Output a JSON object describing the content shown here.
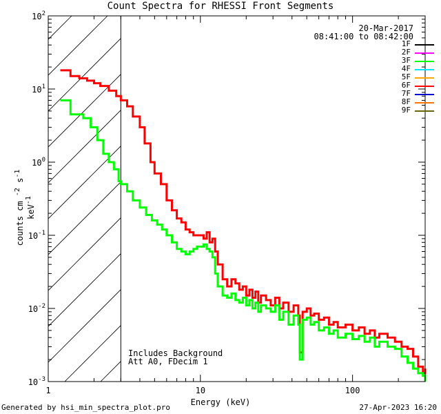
{
  "chart_data": {
    "type": "line",
    "title": "Count Spectra for RHESSI Front Segments",
    "xlabel": "Energy (keV)",
    "ylabel": "counts cm",
    "ylabel_units": [
      "-2",
      "s",
      "-1",
      "keV",
      "-1"
    ],
    "xscale": "log",
    "yscale": "log",
    "xlim": [
      1,
      300
    ],
    "ylim": [
      0.001,
      100
    ],
    "x_ticks": [
      {
        "value": 1,
        "label": "1"
      },
      {
        "value": 10,
        "label": "10"
      },
      {
        "value": 100,
        "label": "100"
      }
    ],
    "y_ticks": [
      {
        "value": 0.001,
        "base": "10",
        "exp": "-3"
      },
      {
        "value": 0.01,
        "base": "10",
        "exp": "-2"
      },
      {
        "value": 0.1,
        "base": "10",
        "exp": "-1"
      },
      {
        "value": 1,
        "base": "10",
        "exp": "0"
      },
      {
        "value": 10,
        "base": "10",
        "exp": "1"
      },
      {
        "value": 100,
        "base": "10",
        "exp": "2"
      }
    ],
    "hatched_region_max_energy": 3,
    "legend": [
      {
        "label": "1F",
        "color": "#000000"
      },
      {
        "label": "2F",
        "color": "#ff00ff"
      },
      {
        "label": "3F",
        "color": "#00ff00"
      },
      {
        "label": "4F",
        "color": "#00e5ff"
      },
      {
        "label": "5F",
        "color": "#ffa500"
      },
      {
        "label": "6F",
        "color": "#ff0000"
      },
      {
        "label": "7F",
        "color": "#0000cc"
      },
      {
        "label": "8F",
        "color": "#ff7700"
      },
      {
        "label": "9F",
        "color": "#666600"
      }
    ],
    "series": [
      {
        "name": "6F",
        "color": "#ff0000",
        "points": [
          [
            1.2,
            18
          ],
          [
            1.4,
            15
          ],
          [
            1.6,
            14
          ],
          [
            1.8,
            13
          ],
          [
            2.0,
            12
          ],
          [
            2.2,
            11
          ],
          [
            2.5,
            9.5
          ],
          [
            2.8,
            8.0
          ],
          [
            3.0,
            7.0
          ],
          [
            3.3,
            5.8
          ],
          [
            3.6,
            4.2
          ],
          [
            4.0,
            3.0
          ],
          [
            4.3,
            1.8
          ],
          [
            4.7,
            1.0
          ],
          [
            5.0,
            0.7
          ],
          [
            5.5,
            0.5
          ],
          [
            6.0,
            0.3
          ],
          [
            6.5,
            0.22
          ],
          [
            7.0,
            0.17
          ],
          [
            7.5,
            0.15
          ],
          [
            8.0,
            0.12
          ],
          [
            8.5,
            0.11
          ],
          [
            9.0,
            0.1
          ],
          [
            9.5,
            0.1
          ],
          [
            10,
            0.1
          ],
          [
            10.5,
            0.09
          ],
          [
            11,
            0.11
          ],
          [
            11.5,
            0.08
          ],
          [
            12,
            0.09
          ],
          [
            12.5,
            0.06
          ],
          [
            13,
            0.04
          ],
          [
            14,
            0.025
          ],
          [
            15,
            0.02
          ],
          [
            16,
            0.025
          ],
          [
            17,
            0.022
          ],
          [
            18,
            0.018
          ],
          [
            19,
            0.02
          ],
          [
            20,
            0.015
          ],
          [
            21,
            0.018
          ],
          [
            22,
            0.014
          ],
          [
            23,
            0.017
          ],
          [
            24,
            0.012
          ],
          [
            25,
            0.015
          ],
          [
            27,
            0.013
          ],
          [
            29,
            0.011
          ],
          [
            31,
            0.014
          ],
          [
            33,
            0.01
          ],
          [
            35,
            0.012
          ],
          [
            38,
            0.009
          ],
          [
            41,
            0.011
          ],
          [
            44,
            0.008
          ],
          [
            45,
            0.0025
          ],
          [
            47,
            0.009
          ],
          [
            50,
            0.01
          ],
          [
            53,
            0.008
          ],
          [
            56,
            0.0085
          ],
          [
            60,
            0.007
          ],
          [
            65,
            0.0075
          ],
          [
            70,
            0.006
          ],
          [
            75,
            0.0065
          ],
          [
            80,
            0.0055
          ],
          [
            90,
            0.006
          ],
          [
            100,
            0.005
          ],
          [
            110,
            0.0055
          ],
          [
            120,
            0.0045
          ],
          [
            130,
            0.005
          ],
          [
            140,
            0.004
          ],
          [
            150,
            0.0045
          ],
          [
            170,
            0.004
          ],
          [
            190,
            0.0035
          ],
          [
            210,
            0.003
          ],
          [
            230,
            0.0028
          ],
          [
            250,
            0.0022
          ],
          [
            270,
            0.0016
          ],
          [
            290,
            0.0013
          ],
          [
            300,
            0.0015
          ]
        ]
      },
      {
        "name": "3F",
        "color": "#00ff00",
        "points": [
          [
            1.2,
            7.0
          ],
          [
            1.4,
            4.5
          ],
          [
            1.7,
            4.0
          ],
          [
            1.9,
            3.0
          ],
          [
            2.1,
            2.0
          ],
          [
            2.3,
            1.3
          ],
          [
            2.5,
            1.0
          ],
          [
            2.7,
            0.8
          ],
          [
            2.9,
            0.55
          ],
          [
            3.0,
            0.5
          ],
          [
            3.3,
            0.4
          ],
          [
            3.6,
            0.3
          ],
          [
            4.0,
            0.24
          ],
          [
            4.4,
            0.19
          ],
          [
            4.8,
            0.16
          ],
          [
            5.2,
            0.14
          ],
          [
            5.6,
            0.12
          ],
          [
            6.0,
            0.1
          ],
          [
            6.5,
            0.08
          ],
          [
            7.0,
            0.065
          ],
          [
            7.5,
            0.06
          ],
          [
            8.0,
            0.055
          ],
          [
            8.5,
            0.06
          ],
          [
            9.0,
            0.065
          ],
          [
            9.5,
            0.07
          ],
          [
            10,
            0.07
          ],
          [
            10.5,
            0.075
          ],
          [
            11,
            0.065
          ],
          [
            11.5,
            0.06
          ],
          [
            12,
            0.05
          ],
          [
            12.5,
            0.03
          ],
          [
            13,
            0.02
          ],
          [
            14,
            0.015
          ],
          [
            15,
            0.014
          ],
          [
            16,
            0.016
          ],
          [
            17,
            0.013
          ],
          [
            18,
            0.012
          ],
          [
            19,
            0.014
          ],
          [
            20,
            0.011
          ],
          [
            21,
            0.013
          ],
          [
            22,
            0.01
          ],
          [
            23,
            0.012
          ],
          [
            24,
            0.009
          ],
          [
            25,
            0.011
          ],
          [
            27,
            0.01
          ],
          [
            29,
            0.009
          ],
          [
            31,
            0.011
          ],
          [
            33,
            0.007
          ],
          [
            35,
            0.009
          ],
          [
            38,
            0.006
          ],
          [
            41,
            0.008
          ],
          [
            44,
            0.006
          ],
          [
            45,
            0.002
          ],
          [
            47,
            0.007
          ],
          [
            50,
            0.0075
          ],
          [
            53,
            0.006
          ],
          [
            56,
            0.0065
          ],
          [
            60,
            0.005
          ],
          [
            65,
            0.0055
          ],
          [
            70,
            0.0045
          ],
          [
            75,
            0.005
          ],
          [
            80,
            0.004
          ],
          [
            90,
            0.0045
          ],
          [
            100,
            0.0038
          ],
          [
            110,
            0.0042
          ],
          [
            120,
            0.0035
          ],
          [
            130,
            0.004
          ],
          [
            140,
            0.003
          ],
          [
            150,
            0.0035
          ],
          [
            170,
            0.003
          ],
          [
            190,
            0.0028
          ],
          [
            210,
            0.0022
          ],
          [
            230,
            0.0018
          ],
          [
            250,
            0.0015
          ],
          [
            270,
            0.0013
          ],
          [
            290,
            0.0012
          ],
          [
            300,
            0.001
          ]
        ]
      }
    ]
  },
  "header": {
    "date": "20-Mar-2017",
    "time_range": "08:41:00 to 08:42:00"
  },
  "notes": {
    "line1": "Includes Background",
    "line2": "Att A0, FDecim 1"
  },
  "footer": {
    "generated_by": "Generated by hsi_min_spectra_plot.pro",
    "timestamp": "27-Apr-2023 16:20"
  }
}
